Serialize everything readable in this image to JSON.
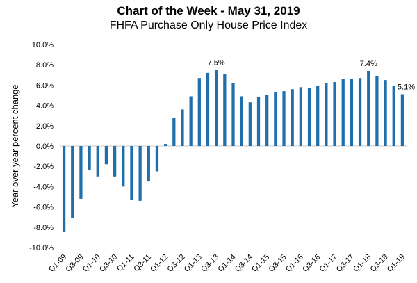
{
  "chart_data": {
    "type": "bar",
    "title": "Chart of the Week - May 31, 2019",
    "subtitle": "FHFA Purchase Only House Price Index",
    "ylabel": "Year over year percent change",
    "xlabel": "",
    "ylim": [
      -10,
      10
    ],
    "yticks": [
      -10,
      -8,
      -6,
      -4,
      -2,
      0,
      2,
      4,
      6,
      8,
      10
    ],
    "ytick_labels": [
      "-10.0%",
      "-8.0%",
      "-6.0%",
      "-4.0%",
      "-2.0%",
      "0.0%",
      "2.0%",
      "4.0%",
      "6.0%",
      "8.0%",
      "10.0%"
    ],
    "bar_color": "#1f6fad",
    "categories": [
      "Q1-09",
      "Q2-09",
      "Q3-09",
      "Q4-09",
      "Q1-10",
      "Q2-10",
      "Q3-10",
      "Q4-10",
      "Q1-11",
      "Q2-11",
      "Q3-11",
      "Q4-11",
      "Q1-12",
      "Q2-12",
      "Q3-12",
      "Q4-12",
      "Q1-13",
      "Q2-13",
      "Q3-13",
      "Q4-13",
      "Q1-14",
      "Q2-14",
      "Q3-14",
      "Q4-14",
      "Q1-15",
      "Q2-15",
      "Q3-15",
      "Q4-15",
      "Q1-16",
      "Q2-16",
      "Q3-16",
      "Q4-16",
      "Q1-17",
      "Q2-17",
      "Q3-17",
      "Q4-17",
      "Q1-18",
      "Q2-18",
      "Q3-18",
      "Q4-18",
      "Q1-19"
    ],
    "values": [
      -8.5,
      -7.1,
      -5.2,
      -2.4,
      -3.0,
      -1.8,
      -3.0,
      -4.0,
      -5.3,
      -5.4,
      -3.5,
      -2.5,
      0.2,
      2.8,
      3.6,
      4.9,
      6.7,
      7.2,
      7.5,
      7.1,
      6.2,
      4.9,
      4.3,
      4.8,
      5.0,
      5.3,
      5.4,
      5.6,
      5.8,
      5.7,
      5.9,
      6.2,
      6.3,
      6.6,
      6.6,
      6.7,
      7.4,
      6.9,
      6.5,
      5.9,
      5.1
    ],
    "xtick_labels": [
      "Q1-09",
      "Q3-09",
      "Q1-10",
      "Q3-10",
      "Q1-11",
      "Q3-11",
      "Q1-12",
      "Q3-12",
      "Q1-13",
      "Q3-13",
      "Q1-14",
      "Q3-14",
      "Q1-15",
      "Q3-15",
      "Q1-16",
      "Q3-16",
      "Q1-17",
      "Q3-17",
      "Q1-18",
      "Q3-18",
      "Q1-19"
    ],
    "annotations": [
      {
        "category": "Q3-13",
        "label": "7.5%"
      },
      {
        "category": "Q1-18",
        "label": "7.4%"
      },
      {
        "category": "Q1-19",
        "label": "5.1%"
      }
    ]
  }
}
